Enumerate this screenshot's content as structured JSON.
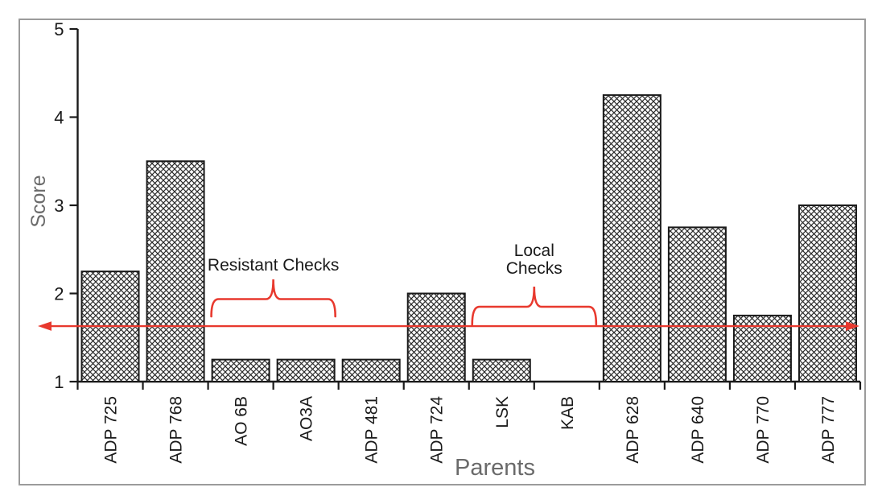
{
  "chart_data": {
    "type": "bar",
    "title": "",
    "xlabel": "Parents",
    "ylabel": "Score",
    "ylim": [
      1,
      5
    ],
    "yticks": [
      "1",
      "2",
      "3",
      "4",
      "5"
    ],
    "categories": [
      "ADP 725",
      "ADP 768",
      "AO 6B",
      "AO3A",
      "ADP 481",
      "ADP 724",
      "LSK",
      "KAB",
      "ADP 628",
      "ADP 640",
      "ADP 770",
      "ADP 777"
    ],
    "values": [
      2.25,
      3.5,
      1.25,
      1.25,
      1.25,
      2,
      1.25,
      1,
      4.25,
      2.75,
      1.75,
      3
    ],
    "bar_fill_pattern": "diagonal-crosshatch",
    "bar_outline_color": "#1a1a1a",
    "axis_color": "#1a1a1a",
    "axis_title_color": "#6a6a6a",
    "grid": false,
    "legend": false,
    "reference_line": {
      "value": 1.63,
      "style": "double-headed-arrow",
      "color": "#e8392e"
    },
    "annotations": [
      {
        "label": "Resistant Checks",
        "lines": [
          "Resistant Checks"
        ],
        "span_categories": [
          "AO 6B",
          "AO3A"
        ],
        "span_index": [
          2,
          3
        ],
        "shape": "curly-brace-up",
        "color": "#e8392e",
        "text_color": "#1a1a1a"
      },
      {
        "label": "Local Checks",
        "lines": [
          "Local",
          "Checks"
        ],
        "span_categories": [
          "LSK",
          "KAB"
        ],
        "span_index": [
          6,
          7
        ],
        "shape": "curly-brace-up",
        "color": "#e8392e",
        "text_color": "#1a1a1a"
      }
    ]
  }
}
